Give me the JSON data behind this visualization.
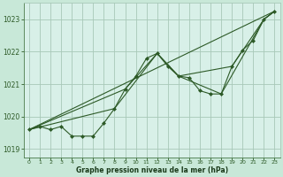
{
  "bg_color": "#c8e8d8",
  "plot_bg_color": "#d8f0e8",
  "grid_color": "#a8c8b8",
  "line_color": "#2d5a27",
  "marker_color": "#2d5a27",
  "xlabel": "Graphe pression niveau de la mer (hPa)",
  "xlabel_color": "#1a3a1a",
  "tick_color": "#2d5a27",
  "ylim": [
    1018.75,
    1023.5
  ],
  "xlim": [
    -0.5,
    23.5
  ],
  "yticks": [
    1019,
    1020,
    1021,
    1022,
    1023
  ],
  "xticks": [
    0,
    1,
    2,
    3,
    4,
    5,
    6,
    7,
    8,
    9,
    10,
    11,
    12,
    13,
    14,
    15,
    16,
    17,
    18,
    19,
    20,
    21,
    22,
    23
  ],
  "series1_x": [
    0,
    1,
    2,
    3,
    4,
    5,
    6,
    7,
    8,
    9,
    10,
    11,
    12,
    13,
    14,
    15,
    16,
    17,
    18,
    19,
    20,
    21,
    22,
    23
  ],
  "series1_y": [
    1019.6,
    1019.7,
    1019.6,
    1019.7,
    1019.4,
    1019.4,
    1019.4,
    1019.8,
    1020.25,
    1020.85,
    1021.25,
    1021.8,
    1021.95,
    1021.55,
    1021.25,
    1021.2,
    1020.8,
    1020.7,
    1020.7,
    1021.55,
    1022.05,
    1022.35,
    1023.0,
    1023.25
  ],
  "series2_x": [
    0,
    23
  ],
  "series2_y": [
    1019.6,
    1023.25
  ],
  "series3_x": [
    0,
    8,
    12,
    14,
    19,
    22,
    23
  ],
  "series3_y": [
    1019.6,
    1020.25,
    1021.95,
    1021.25,
    1021.55,
    1023.0,
    1023.25
  ],
  "series4_x": [
    0,
    9,
    12,
    14,
    18,
    22,
    23
  ],
  "series4_y": [
    1019.6,
    1020.85,
    1021.95,
    1021.25,
    1020.7,
    1023.0,
    1023.25
  ]
}
